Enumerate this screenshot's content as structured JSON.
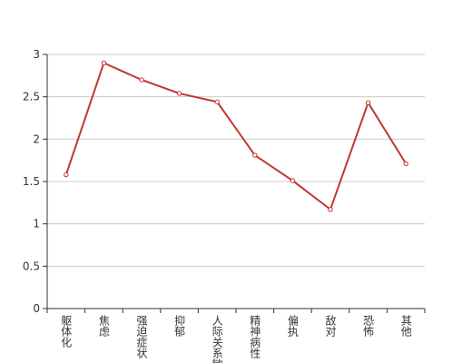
{
  "chart_data": {
    "type": "line",
    "categories": [
      "躯体化",
      "焦虑",
      "强迫症状",
      "抑郁",
      "人际关系敏感",
      "精神病性",
      "偏执",
      "敌对",
      "恐怖",
      "其他"
    ],
    "series": [
      {
        "color": "#c23531",
        "values": [
          1.58,
          2.9,
          2.7,
          2.54,
          2.44,
          1.81,
          1.51,
          1.17,
          2.43,
          1.71
        ]
      }
    ],
    "ylim": [
      0,
      3
    ],
    "yticks": [
      0,
      0.5,
      1,
      1.5,
      2,
      2.5,
      3
    ],
    "grid": true
  }
}
